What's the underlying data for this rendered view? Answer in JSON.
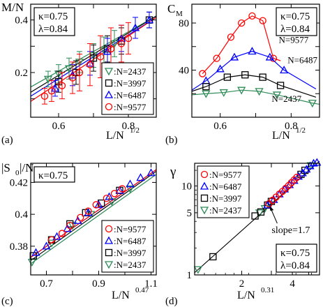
{
  "chart_data": [
    {
      "panel": "(a)",
      "type": "scatter",
      "ylabel": "M/N",
      "xlabel": "L/N",
      "xlabel_exp": "1/2",
      "params": [
        "κ=0.75",
        "λ=0.84"
      ],
      "xlim": [
        0.52,
        0.88
      ],
      "ylim": [
        0.03,
        0.46
      ],
      "xticks": [
        0.6,
        0.7,
        0.8
      ],
      "xticklabels": [
        "0.6",
        "",
        "0.8"
      ],
      "yticks": [
        0.1,
        0.2,
        0.3,
        0.4
      ],
      "yticklabels": [
        "",
        "0.2",
        "",
        "0.4"
      ],
      "legend": {
        "position": "bottom-right"
      },
      "series": [
        {
          "name": ":N=2437",
          "marker": "triangle-down",
          "color": "#2e8b57",
          "x": [
            0.57,
            0.6,
            0.63,
            0.66,
            0.7,
            0.73,
            0.76
          ],
          "y": [
            0.175,
            0.195,
            0.215,
            0.24,
            0.265,
            0.285,
            0.31
          ],
          "err": [
            0.03,
            0.035,
            0.04,
            0.04,
            0.045,
            0.05,
            0.05
          ],
          "fit": {
            "x": [
              0.52,
              0.88
            ],
            "y": [
              0.145,
              0.415
            ]
          }
        },
        {
          "name": ":N=3997",
          "marker": "square",
          "color": "#000000",
          "x": [
            0.6,
            0.65,
            0.7,
            0.74,
            0.78,
            0.86
          ],
          "y": [
            0.165,
            0.2,
            0.255,
            0.29,
            0.32,
            0.4
          ],
          "err": [
            0.04,
            0.045,
            0.05,
            0.05,
            0.05,
            0.03
          ],
          "fit": {
            "x": [
              0.52,
              0.88
            ],
            "y": [
              0.125,
              0.415
            ]
          }
        },
        {
          "name": ":N=6487",
          "marker": "triangle-up",
          "color": "#0000ff",
          "x": [
            0.59,
            0.64,
            0.69,
            0.74,
            0.78,
            0.82,
            0.86
          ],
          "y": [
            0.14,
            0.19,
            0.235,
            0.28,
            0.33,
            0.37,
            0.4
          ],
          "err": [
            0.03,
            0.04,
            0.045,
            0.05,
            0.05,
            0.04,
            0.03
          ],
          "fit": {
            "x": [
              0.52,
              0.88
            ],
            "y": [
              0.11,
              0.41
            ]
          }
        },
        {
          "name": ":N=9577",
          "marker": "circle",
          "color": "#ff0000",
          "x": [
            0.56,
            0.58,
            0.61,
            0.64,
            0.66,
            0.69,
            0.72,
            0.75,
            0.78,
            0.8
          ],
          "y": [
            0.11,
            0.13,
            0.15,
            0.18,
            0.2,
            0.23,
            0.26,
            0.29,
            0.31,
            0.33
          ],
          "err": [
            0.03,
            0.04,
            0.05,
            0.06,
            0.07,
            0.08,
            0.08,
            0.08,
            0.07,
            0.06
          ],
          "fit": {
            "x": [
              0.52,
              0.88
            ],
            "y": [
              0.09,
              0.41
            ]
          }
        }
      ]
    },
    {
      "panel": "(b)",
      "type": "line",
      "ylabel": "C",
      "ylabel_sub": "M",
      "xlabel": "L/N",
      "xlabel_exp": "1/2",
      "params": [
        "κ=0.75",
        "λ=0.84"
      ],
      "xlim": [
        0.52,
        0.88
      ],
      "ylim": [
        0,
        96
      ],
      "xticks": [
        0.6,
        0.7,
        0.8
      ],
      "xticklabels": [
        "0.6",
        "",
        "0.8"
      ],
      "yticks": [
        20,
        40,
        60,
        80
      ],
      "yticklabels": [
        "",
        "40",
        "",
        "80"
      ],
      "series": [
        {
          "name": "N=9577",
          "label": "N=9577",
          "marker": "circle",
          "color": "#ff0000",
          "x": [
            0.55,
            0.59,
            0.63,
            0.66,
            0.69,
            0.72,
            0.75
          ],
          "y": [
            37,
            50,
            68,
            80,
            86,
            82,
            50
          ],
          "line_x": [
            0.55,
            0.59,
            0.63,
            0.66,
            0.69,
            0.72,
            0.75,
            0.77
          ],
          "line_y": [
            37,
            50,
            68,
            80,
            86,
            82,
            50,
            48
          ]
        },
        {
          "name": "N=6487",
          "label": "N=6487",
          "marker": "triangle-up",
          "color": "#0000ff",
          "x": [
            0.56,
            0.6,
            0.64,
            0.69,
            0.74,
            0.78
          ],
          "y": [
            31,
            41,
            51,
            56,
            51,
            40
          ],
          "line_x": [
            0.52,
            0.56,
            0.6,
            0.64,
            0.69,
            0.74,
            0.78,
            0.87
          ],
          "line_y": [
            23,
            31,
            41,
            51,
            56,
            51,
            40,
            24
          ]
        },
        {
          "name": "N=3997",
          "label": "",
          "marker": "square",
          "color": "#000000",
          "x": [
            0.56,
            0.62,
            0.67,
            0.72,
            0.77
          ],
          "y": [
            26,
            34,
            36,
            34,
            27
          ],
          "line_x": [
            0.52,
            0.56,
            0.62,
            0.67,
            0.72,
            0.77,
            0.87
          ],
          "line_y": [
            22,
            26,
            34,
            36,
            34,
            27,
            17
          ]
        },
        {
          "name": "N=2437",
          "label": "N=2437",
          "marker": "triangle-down",
          "color": "#2e8b57",
          "x": [
            0.56,
            0.61,
            0.66,
            0.71,
            0.76,
            0.86
          ],
          "y": [
            20,
            21,
            23,
            22,
            19,
            12
          ],
          "line_x": [
            0.52,
            0.56,
            0.61,
            0.66,
            0.71,
            0.76,
            0.86,
            0.88
          ],
          "line_y": [
            19,
            20,
            21,
            23,
            22,
            19,
            12,
            11
          ]
        }
      ]
    },
    {
      "panel": "(c)",
      "type": "scatter",
      "ylabel": "|S",
      "ylabel_sub": "0",
      "ylabel_rest": "|/N",
      "xlabel": "L/N",
      "xlabel_exp": "0.47",
      "params": [
        "κ=0.75"
      ],
      "xlim": [
        0.64,
        1.12
      ],
      "ylim": [
        0.362,
        0.432
      ],
      "xticks": [
        0.7,
        0.8,
        0.9,
        1.0,
        1.1
      ],
      "xticklabels": [
        "0.7",
        "",
        "0.9",
        "",
        "1.1"
      ],
      "yticks": [
        0.38,
        0.4,
        0.42
      ],
      "yticklabels": [
        "0.38",
        "0.4",
        "0.42"
      ],
      "legend": {
        "position": "bottom-right"
      },
      "series": [
        {
          "name": ":N=9577",
          "marker": "circle",
          "color": "#ff0000",
          "x": [
            0.72,
            0.76,
            0.79,
            0.83,
            0.86,
            0.89,
            0.93,
            0.96,
            0.99
          ],
          "y": [
            0.384,
            0.388,
            0.393,
            0.398,
            0.402,
            0.406,
            0.41,
            0.413,
            0.416
          ]
        },
        {
          "name": ":N=6487",
          "marker": "triangle-up",
          "color": "#0000ff",
          "x": [
            0.66,
            0.7,
            0.74,
            0.78,
            0.82,
            0.86,
            0.9,
            0.94,
            0.98,
            1.02,
            1.06,
            1.1
          ],
          "y": [
            0.376,
            0.38,
            0.386,
            0.391,
            0.396,
            0.401,
            0.406,
            0.411,
            0.415,
            0.419,
            0.423,
            0.426
          ]
        },
        {
          "name": ":N=3997",
          "marker": "square",
          "color": "#000000",
          "x": [
            0.65,
            0.72,
            0.79,
            0.85,
            0.91,
            0.98
          ],
          "y": [
            0.374,
            0.384,
            0.394,
            0.401,
            0.407,
            0.415
          ]
        },
        {
          "name": ":N=2437",
          "marker": "triangle-down",
          "color": "#2e8b57",
          "x": [
            0.645,
            0.72,
            0.8,
            0.87,
            0.95,
            1.02
          ],
          "y": [
            0.37,
            0.382,
            0.393,
            0.4,
            0.408,
            0.416
          ]
        }
      ],
      "fits": [
        {
          "color": "#0000ff",
          "x": [
            0.64,
            1.12
          ],
          "y": [
            0.373,
            0.428
          ]
        },
        {
          "color": "#ff0000",
          "x": [
            0.64,
            1.12
          ],
          "y": [
            0.373,
            0.428
          ]
        },
        {
          "color": "#000000",
          "x": [
            0.64,
            1.12
          ],
          "y": [
            0.371,
            0.427
          ]
        },
        {
          "color": "#2e8b57",
          "x": [
            0.64,
            1.12
          ],
          "y": [
            0.369,
            0.425
          ]
        }
      ]
    },
    {
      "panel": "(d)",
      "type": "scatter",
      "ylabel": "γ",
      "xlabel": "L/N",
      "xlabel_exp": "0.31",
      "params": [
        "κ=0.75",
        "λ=0.84"
      ],
      "xscale": "log",
      "yscale": "log",
      "xlim": [
        1.05,
        5.8
      ],
      "ylim": [
        1,
        18
      ],
      "xticks": [
        2,
        3,
        4,
        5
      ],
      "xticklabels": [
        "2",
        "",
        "4",
        ""
      ],
      "yticks": [
        1,
        5,
        10
      ],
      "yticklabels": [
        "1",
        "5",
        "10"
      ],
      "legend": {
        "position": "top-left"
      },
      "annotation": {
        "text": "slope=1.7",
        "x": 2.9,
        "y": 6.3
      },
      "fit": {
        "x": [
          1.05,
          5.8
        ],
        "y": [
          1.06,
          19.0
        ]
      },
      "series": [
        {
          "name": ":N=9577",
          "marker": "circle",
          "color": "#ff0000",
          "x": [
            2.9,
            3.05,
            3.2,
            3.35,
            3.5,
            3.65,
            3.8,
            3.95,
            4.1,
            4.25
          ],
          "y": [
            6.3,
            6.9,
            7.5,
            8.1,
            8.7,
            9.4,
            10.1,
            10.9,
            11.7,
            12.5
          ]
        },
        {
          "name": ":N=6487",
          "marker": "triangle-up",
          "color": "#0000ff",
          "x": [
            2.85,
            3.1,
            3.35,
            3.6,
            3.85,
            4.1,
            4.35,
            4.6,
            4.85,
            5.1,
            5.35,
            5.6
          ],
          "y": [
            6.1,
            7.0,
            8.1,
            9.2,
            10.3,
            11.5,
            12.8,
            14.0,
            15.4,
            16.8,
            18.0,
            18.4
          ]
        },
        {
          "name": ":N=3997",
          "marker": "square",
          "color": "#000000",
          "x": [
            1.35,
            2.4,
            2.6,
            2.85,
            3.0,
            4.5,
            4.75
          ],
          "y": [
            1.6,
            4.6,
            5.1,
            6.1,
            6.7,
            13.5,
            15.0
          ]
        },
        {
          "name": ":N=2437",
          "marker": "triangle-down",
          "color": "#2e8b57",
          "x": [
            1.1,
            2.55,
            2.75,
            2.95,
            5.15
          ],
          "y": [
            1.15,
            5.0,
            5.6,
            6.2,
            17.0
          ]
        }
      ]
    }
  ]
}
